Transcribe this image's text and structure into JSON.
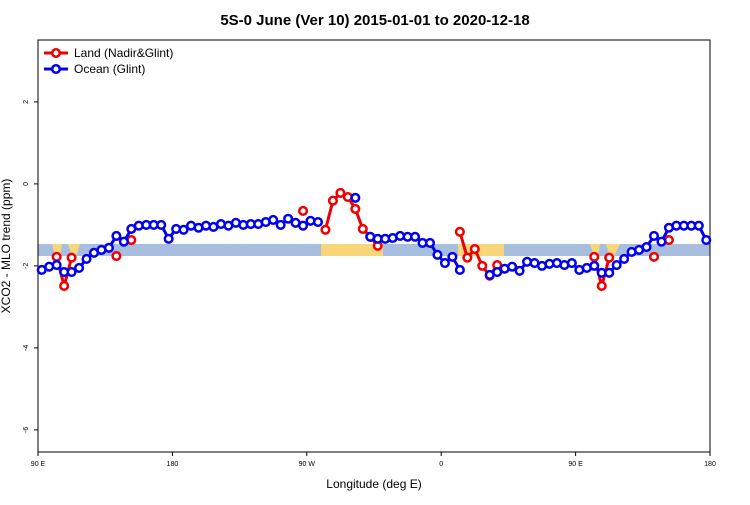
{
  "chart_data": {
    "type": "line",
    "title": "5S-0 June (Ver 10)   2015-01-01 to 2020-12-18",
    "x_label": "Longitude (deg E)",
    "y_label": "XCO2 - MLO trend (ppm)",
    "legend_position": "top-left",
    "xlim": [
      90,
      540
    ],
    "xticks": [
      {
        "value": 90,
        "label": "90 E"
      },
      {
        "value": 180,
        "label": "180"
      },
      {
        "value": 270,
        "label": "90 W"
      },
      {
        "value": 360,
        "label": "0"
      },
      {
        "value": 450,
        "label": "90 E"
      },
      {
        "value": 540,
        "label": "180"
      }
    ],
    "ylim": [
      -6.54,
      3.51
    ],
    "yticks": [
      2,
      0,
      -2,
      -4,
      -6
    ],
    "x": [
      92.5,
      97.5,
      102.5,
      107.5,
      112.5,
      117.5,
      122.5,
      127.5,
      132.5,
      137.5,
      142.5,
      147.5,
      152.5,
      157.5,
      162.5,
      167.5,
      172.5,
      177.5,
      182.5,
      187.5,
      192.5,
      197.5,
      202.5,
      207.5,
      212.5,
      217.5,
      222.5,
      227.5,
      232.5,
      237.5,
      242.5,
      247.5,
      252.5,
      257.5,
      262.5,
      267.5,
      272.5,
      277.5,
      282.5,
      287.5,
      292.5,
      297.5,
      302.5,
      307.5,
      312.5,
      317.5,
      322.5,
      327.5,
      332.5,
      337.5,
      342.5,
      347.5,
      352.5,
      357.5,
      362.5,
      367.5,
      372.5,
      377.5,
      382.5,
      387.5,
      392.5,
      397.5,
      402.5,
      407.5,
      412.5,
      417.5,
      422.5,
      427.5,
      432.5,
      437.5,
      442.5,
      447.5,
      452.5,
      457.5,
      462.5,
      467.5,
      472.5,
      477.5,
      482.5,
      487.5,
      492.5,
      497.5,
      502.5,
      507.5,
      512.5,
      517.5,
      522.5,
      527.5,
      532.5,
      537.5
    ],
    "series": [
      {
        "name": "Land (Nadir&Glint)",
        "color": "#ee0000",
        "values": [
          null,
          null,
          -1.78,
          -2.49,
          -1.8,
          null,
          null,
          null,
          null,
          null,
          -1.76,
          null,
          -1.37,
          null,
          null,
          null,
          null,
          null,
          null,
          null,
          null,
          null,
          null,
          null,
          null,
          null,
          null,
          null,
          null,
          null,
          null,
          null,
          null,
          null,
          null,
          -0.66,
          null,
          null,
          -1.12,
          -0.41,
          -0.22,
          -0.32,
          -0.61,
          -1.1,
          -1.29,
          -1.51,
          null,
          null,
          null,
          null,
          null,
          null,
          null,
          null,
          null,
          null,
          -1.17,
          -1.8,
          -1.59,
          -2.0,
          -2.24,
          -1.98,
          null,
          null,
          null,
          null,
          null,
          null,
          null,
          null,
          null,
          null,
          null,
          null,
          -1.78,
          -2.49,
          -1.8,
          null,
          null,
          null,
          null,
          null,
          -1.78,
          null,
          -1.37,
          null,
          null,
          null,
          null,
          null
        ]
      },
      {
        "name": "Ocean (Glint)",
        "color": "#0000ee",
        "values": [
          -2.1,
          -2.02,
          -1.98,
          -2.15,
          -2.15,
          -2.05,
          -1.83,
          -1.68,
          -1.61,
          -1.56,
          -1.27,
          -1.41,
          -1.1,
          -1.02,
          -1.0,
          -1.0,
          -1.0,
          -1.34,
          -1.1,
          -1.12,
          -1.02,
          -1.07,
          -1.02,
          -1.05,
          -0.98,
          -1.02,
          -0.95,
          -1.0,
          -0.98,
          -0.98,
          -0.93,
          -0.88,
          -1.0,
          -0.85,
          -0.95,
          -1.02,
          -0.9,
          -0.93,
          null,
          null,
          null,
          null,
          -0.34,
          null,
          -1.29,
          -1.34,
          -1.34,
          -1.32,
          -1.27,
          -1.29,
          -1.29,
          -1.44,
          -1.44,
          -1.73,
          -1.93,
          -1.78,
          -2.1,
          null,
          null,
          null,
          -2.22,
          -2.15,
          -2.07,
          -2.02,
          -2.12,
          -1.9,
          -1.93,
          -2.0,
          -1.95,
          -1.93,
          -1.98,
          -1.93,
          -2.1,
          -2.05,
          -2.0,
          -2.17,
          -2.17,
          -1.98,
          -1.83,
          -1.66,
          -1.61,
          -1.54,
          -1.27,
          -1.41,
          -1.07,
          -1.02,
          -1.02,
          -1.02,
          -1.02,
          -1.37
        ]
      }
    ]
  }
}
